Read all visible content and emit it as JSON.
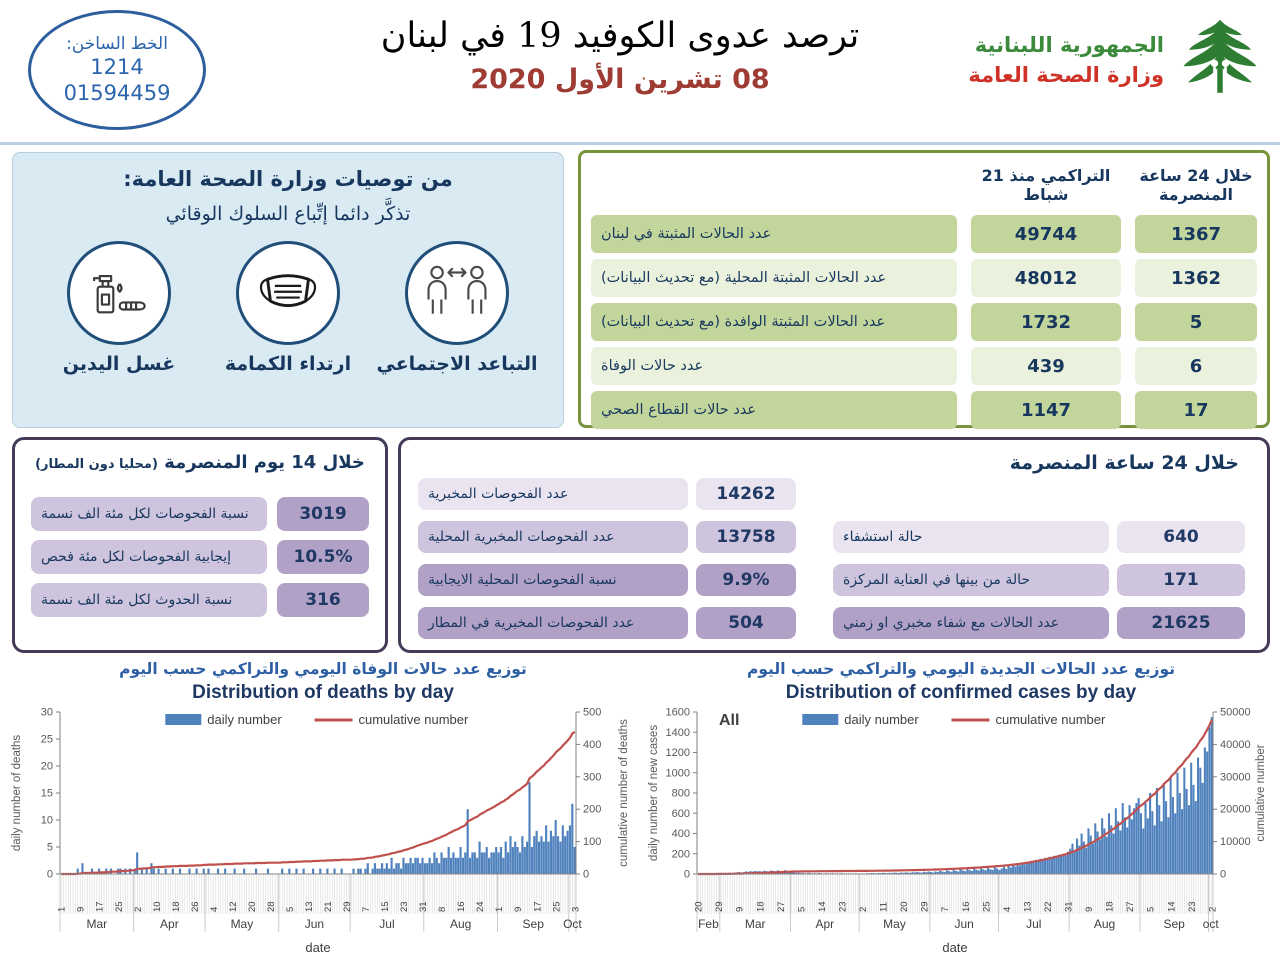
{
  "header": {
    "hotline_label": "الخط الساخن:",
    "hotline_number_1": "1214",
    "hotline_number_2": "01594459",
    "title": "ترصد عدوى الكوفيد 19 في لبنان",
    "date": "08 تشرين الأول 2020",
    "ministry_line1": "الجمهورية اللبنانية",
    "ministry_line2": "وزارة الصحة العامة"
  },
  "recommendations": {
    "title": "من توصيات وزارة الصحة العامة:",
    "subtitle": "تذكَّر دائما إتِّباع السلوك الوقائي",
    "items": [
      {
        "icon": "hand-washing",
        "label": "غسل اليدين"
      },
      {
        "icon": "face-mask",
        "label": "ارتداء الكمامة"
      },
      {
        "icon": "social-distancing",
        "label": "التباعد الاجتماعي"
      }
    ]
  },
  "stats_table": {
    "col_cumulative": "التراكمي منذ 21 شباط",
    "col_24h": "خلال 24 ساعة المنصرمة",
    "rows": [
      {
        "label": "عدد الحالات المثبتة في لبنان",
        "cumulative": "49744",
        "last24h": "1367"
      },
      {
        "label": "عدد الحالات المثبتة المحلية (مع تحديث البيانات)",
        "cumulative": "48012",
        "last24h": "1362"
      },
      {
        "label": "عدد الحالات المثبتة الوافدة (مع تحديث البيانات)",
        "cumulative": "1732",
        "last24h": "5"
      },
      {
        "label": "عدد حالات الوفاة",
        "cumulative": "439",
        "last24h": "6"
      },
      {
        "label": "عدد حالات القطاع الصحي",
        "cumulative": "1147",
        "last24h": "17"
      }
    ]
  },
  "fortnight_box": {
    "title": "خلال 14 يوم المنصرمة",
    "title_paren": "(محليا دون المطار)",
    "rows": [
      {
        "label": "نسبة الفحوصات لكل مئة الف نسمة",
        "value": "3019"
      },
      {
        "label": "إيجابية الفحوصات لكل مئة فحص",
        "value": "10.5%"
      },
      {
        "label": "نسبة الحدوث لكل مئة الف نسمة",
        "value": "316"
      }
    ]
  },
  "day_box": {
    "title": "خلال 24 ساعة المنصرمة",
    "left_rows": [
      {
        "label": "عدد الفحوصات المخبرية",
        "value": "14262"
      },
      {
        "label": "عدد الفحوصات المخبرية المحلية",
        "value": "13758"
      },
      {
        "label": "نسبة الفحوصات المحلية الايجابية",
        "value": "9.9%"
      },
      {
        "label": "عدد الفحوصات المخبرية في المطار",
        "value": "504"
      }
    ],
    "right_rows": [
      {
        "label": "حالة استشفاء",
        "value": "640"
      },
      {
        "label": "حالة من بينها في العناية المركزة",
        "value": "171"
      },
      {
        "label": "عدد الحالات مع شفاء مخبري او زمني",
        "value": "21625"
      }
    ]
  },
  "colors": {
    "accent_blue": "#2b65ad",
    "navy_text": "#17375e",
    "date_red": "#9e3b32",
    "ministry_green": "#3c8a3c",
    "ministry_red": "#cf3227",
    "table_green_border": "#77933c",
    "table_green_fill": "#c2d69b",
    "purple_border": "#463a59",
    "purple_fill": "#b2a1c7",
    "bar_blue": "#4f81bd",
    "line_red": "#c0504d"
  },
  "chart_data": [
    {
      "type": "bar",
      "title_ar": "توزيع عدد حالات  الوفاة اليومي والتراكمي حسب اليوم",
      "title_en": "Distribution of deaths by day",
      "legend": [
        "daily number",
        "cumulative number"
      ],
      "xlabel": "date",
      "ylabel_left": "daily number of deaths",
      "ylabel_right": "cumulative number of deaths",
      "ylim_left": [
        0,
        30
      ],
      "ytick_left": 5,
      "ylim_right": [
        0,
        500
      ],
      "ytick_right": 100,
      "annotation": "",
      "bar_color": "#4f81bd",
      "line_color": "#c0504d",
      "tick_step": 8,
      "day_tick_labels": [
        "1",
        "9",
        "17",
        "25",
        "2",
        "10",
        "18",
        "26",
        "4",
        "12",
        "20",
        "28",
        "5",
        "13",
        "21",
        "29",
        "7",
        "15",
        "23",
        "31",
        "8",
        "16",
        "24",
        "1",
        "9",
        "17",
        "25",
        "3"
      ],
      "months": [
        {
          "name": "Mar",
          "start": 0
        },
        {
          "name": "Apr",
          "start": 31
        },
        {
          "name": "May",
          "start": 61
        },
        {
          "name": "Jun",
          "start": 92
        },
        {
          "name": "Jul",
          "start": 122
        },
        {
          "name": "Aug",
          "start": 153
        },
        {
          "name": "Sep",
          "start": 184
        },
        {
          "name": "Oct",
          "start": 214
        }
      ],
      "daily": [
        0,
        0,
        0,
        0,
        0,
        0,
        0,
        1,
        0,
        2,
        0,
        0,
        0,
        1,
        0,
        0,
        1,
        0,
        0,
        1,
        0,
        1,
        0,
        0,
        1,
        1,
        0,
        1,
        0,
        1,
        0,
        1,
        4,
        0,
        1,
        0,
        1,
        0,
        2,
        1,
        0,
        1,
        0,
        0,
        1,
        0,
        0,
        1,
        0,
        0,
        1,
        0,
        0,
        0,
        1,
        0,
        0,
        1,
        0,
        0,
        1,
        0,
        1,
        0,
        0,
        0,
        1,
        0,
        0,
        1,
        0,
        0,
        0,
        1,
        0,
        0,
        0,
        1,
        0,
        0,
        0,
        0,
        1,
        0,
        0,
        0,
        0,
        1,
        0,
        0,
        0,
        0,
        0,
        1,
        0,
        0,
        1,
        0,
        0,
        1,
        0,
        0,
        1,
        0,
        0,
        0,
        1,
        0,
        0,
        1,
        0,
        0,
        1,
        0,
        0,
        1,
        0,
        0,
        1,
        0,
        0,
        0,
        0,
        1,
        0,
        1,
        1,
        0,
        1,
        2,
        0,
        1,
        2,
        1,
        1,
        2,
        1,
        2,
        1,
        3,
        1,
        2,
        2,
        1,
        3,
        2,
        2,
        3,
        2,
        3,
        3,
        2,
        3,
        2,
        2,
        3,
        2,
        4,
        3,
        2,
        4,
        3,
        3,
        5,
        3,
        4,
        3,
        3,
        5,
        3,
        4,
        12,
        3,
        4,
        4,
        3,
        6,
        4,
        4,
        5,
        3,
        4,
        4,
        5,
        4,
        5,
        3,
        6,
        4,
        7,
        5,
        6,
        5,
        4,
        7,
        5,
        6,
        17,
        5,
        7,
        8,
        6,
        7,
        6,
        9,
        6,
        8,
        7,
        10,
        7,
        6,
        9,
        7,
        8,
        9,
        13,
        5
      ]
    },
    {
      "type": "bar",
      "title_ar": "توزيع عدد الحالات الجديدة اليومي والتراكمي حسب اليوم",
      "title_en": "Distribution of confirmed cases by day",
      "legend": [
        "daily number",
        "cumulative number"
      ],
      "xlabel": "date",
      "ylabel_left": "daily number of new cases",
      "ylabel_right": "cumulative number",
      "ylim_left": [
        0,
        1600
      ],
      "ytick_left": 200,
      "ylim_right": [
        0,
        50000
      ],
      "ytick_right": 10000,
      "annotation": "All",
      "bar_color": "#4f81bd",
      "line_color": "#c0504d",
      "tick_step": 9,
      "day_tick_labels": [
        "20",
        "29",
        "9",
        "18",
        "27",
        "5",
        "14",
        "23",
        "2",
        "11",
        "20",
        "29",
        "7",
        "16",
        "25",
        "4",
        "13",
        "22",
        "31",
        "9",
        "18",
        "27",
        "5",
        "14",
        "23",
        "2"
      ],
      "months": [
        {
          "name": "Feb",
          "start": 0
        },
        {
          "name": "Mar",
          "start": 10
        },
        {
          "name": "Apr",
          "start": 41
        },
        {
          "name": "May",
          "start": 71
        },
        {
          "name": "Jun",
          "start": 102
        },
        {
          "name": "Jul",
          "start": 132
        },
        {
          "name": "Aug",
          "start": 163
        },
        {
          "name": "Sep",
          "start": 194
        },
        {
          "name": "oct",
          "start": 224
        }
      ],
      "daily": [
        1,
        0,
        2,
        1,
        0,
        3,
        2,
        1,
        4,
        3,
        3,
        5,
        8,
        10,
        12,
        9,
        14,
        16,
        20,
        15,
        18,
        25,
        22,
        28,
        24,
        30,
        26,
        28,
        24,
        32,
        28,
        26,
        34,
        30,
        26,
        36,
        30,
        28,
        38,
        32,
        28,
        20,
        15,
        10,
        12,
        8,
        10,
        6,
        8,
        10,
        5,
        8,
        6,
        10,
        7,
        5,
        8,
        6,
        4,
        8,
        5,
        6,
        4,
        8,
        5,
        4,
        6,
        5,
        4,
        6,
        5,
        4,
        6,
        5,
        8,
        6,
        10,
        8,
        6,
        10,
        8,
        12,
        10,
        8,
        12,
        10,
        14,
        12,
        10,
        15,
        12,
        16,
        14,
        12,
        18,
        15,
        20,
        16,
        14,
        22,
        18,
        25,
        20,
        15,
        25,
        20,
        30,
        25,
        20,
        35,
        28,
        22,
        40,
        30,
        25,
        45,
        35,
        28,
        50,
        38,
        30,
        55,
        42,
        35,
        60,
        45,
        38,
        65,
        48,
        40,
        70,
        55,
        40,
        55,
        70,
        50,
        80,
        65,
        90,
        75,
        100,
        85,
        110,
        95,
        120,
        105,
        130,
        115,
        140,
        125,
        150,
        135,
        160,
        145,
        170,
        155,
        180,
        165,
        190,
        175,
        200,
        185,
        220,
        250,
        300,
        220,
        350,
        280,
        400,
        320,
        260,
        450,
        380,
        300,
        500,
        420,
        340,
        550,
        450,
        370,
        600,
        480,
        400,
        650,
        520,
        430,
        700,
        560,
        460,
        680,
        540,
        650,
        700,
        750,
        600,
        450,
        700,
        550,
        800,
        620,
        480,
        850,
        680,
        520,
        900,
        720,
        560,
        950,
        760,
        600,
        1000,
        800,
        640,
        1050,
        840,
        680,
        1100,
        880,
        720,
        1150,
        1050,
        900,
        1250,
        1210,
        1450,
        1550
      ]
    }
  ]
}
